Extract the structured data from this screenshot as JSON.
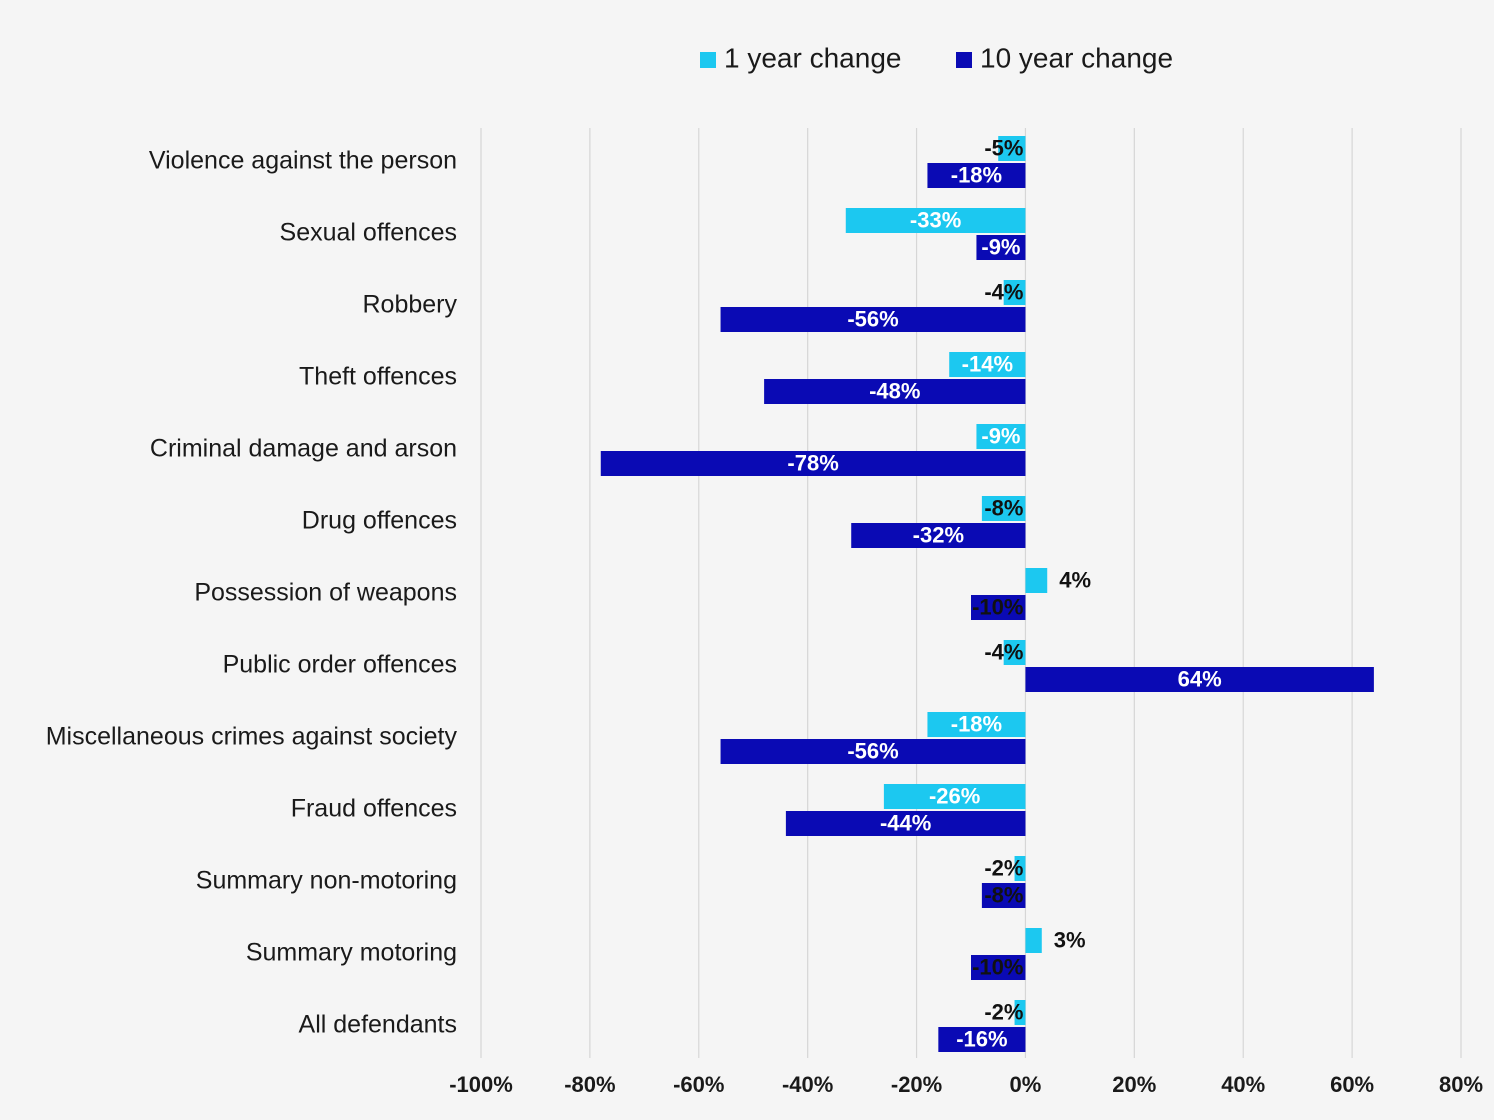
{
  "chart_data": {
    "type": "bar",
    "orientation": "horizontal",
    "title": "",
    "xlabel": "",
    "ylabel": "",
    "xlim": [
      -100,
      80
    ],
    "tick_step": 20,
    "tick_labels": [
      "-100%",
      "-80%",
      "-60%",
      "-40%",
      "-20%",
      "0%",
      "20%",
      "40%",
      "60%",
      "80%"
    ],
    "grid": "vertical",
    "legend_position": "top",
    "categories": [
      "Violence against the person",
      "Sexual offences",
      "Robbery",
      "Theft offences",
      "Criminal damage and arson",
      "Drug offences",
      "Possession of weapons",
      "Public order offences",
      "Miscellaneous crimes against society",
      "Fraud offences",
      "Summary non-motoring",
      "Summary motoring",
      "All defendants"
    ],
    "series": [
      {
        "name": "1 year change",
        "color": "#1cc8f0",
        "values": [
          -5,
          -33,
          -4,
          -14,
          -9,
          -8,
          4,
          -4,
          -18,
          -26,
          -2,
          3,
          -2
        ],
        "labels": [
          "-5%",
          "-33%",
          "-4%",
          "-14%",
          "-9%",
          "-8%",
          "4%",
          "-4%",
          "-18%",
          "-26%",
          "-2%",
          "3%",
          "-2%"
        ]
      },
      {
        "name": "10 year change",
        "color": "#0a0ab4",
        "values": [
          -18,
          -9,
          -56,
          -48,
          -78,
          -32,
          -10,
          64,
          -56,
          -44,
          -8,
          -10,
          -16
        ],
        "labels": [
          "-18%",
          "-9%",
          "-56%",
          "-48%",
          "-78%",
          "-32%",
          "-10%",
          "64%",
          "-56%",
          "-44%",
          "-8%",
          "-10%",
          "-16%"
        ]
      }
    ]
  }
}
